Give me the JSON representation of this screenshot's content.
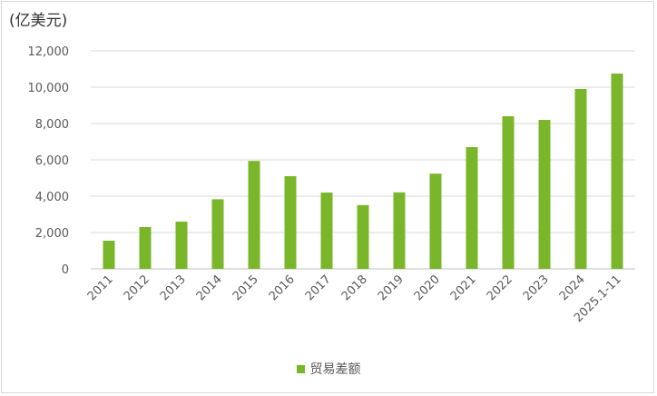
{
  "chart_data": {
    "type": "bar",
    "unit_label": "(亿美元)",
    "categories": [
      "2011",
      "2012",
      "2013",
      "2014",
      "2015",
      "2016",
      "2017",
      "2018",
      "2019",
      "2020",
      "2021",
      "2022",
      "2023",
      "2024",
      "2025.1-11"
    ],
    "series": [
      {
        "name": "贸易差额",
        "color": "#7ab62a",
        "values": [
          1550,
          2300,
          2600,
          3830,
          5940,
          5100,
          4200,
          3510,
          4210,
          5240,
          6700,
          8400,
          8200,
          9900,
          10750
        ]
      }
    ],
    "ylim": [
      0,
      12000
    ],
    "yticks": [
      0,
      2000,
      4000,
      6000,
      8000,
      10000,
      12000
    ],
    "ytick_labels": [
      "0",
      "2,000",
      "4,000",
      "6,000",
      "8,000",
      "10,000",
      "12,000"
    ],
    "grid": true,
    "legend_position": "bottom"
  }
}
